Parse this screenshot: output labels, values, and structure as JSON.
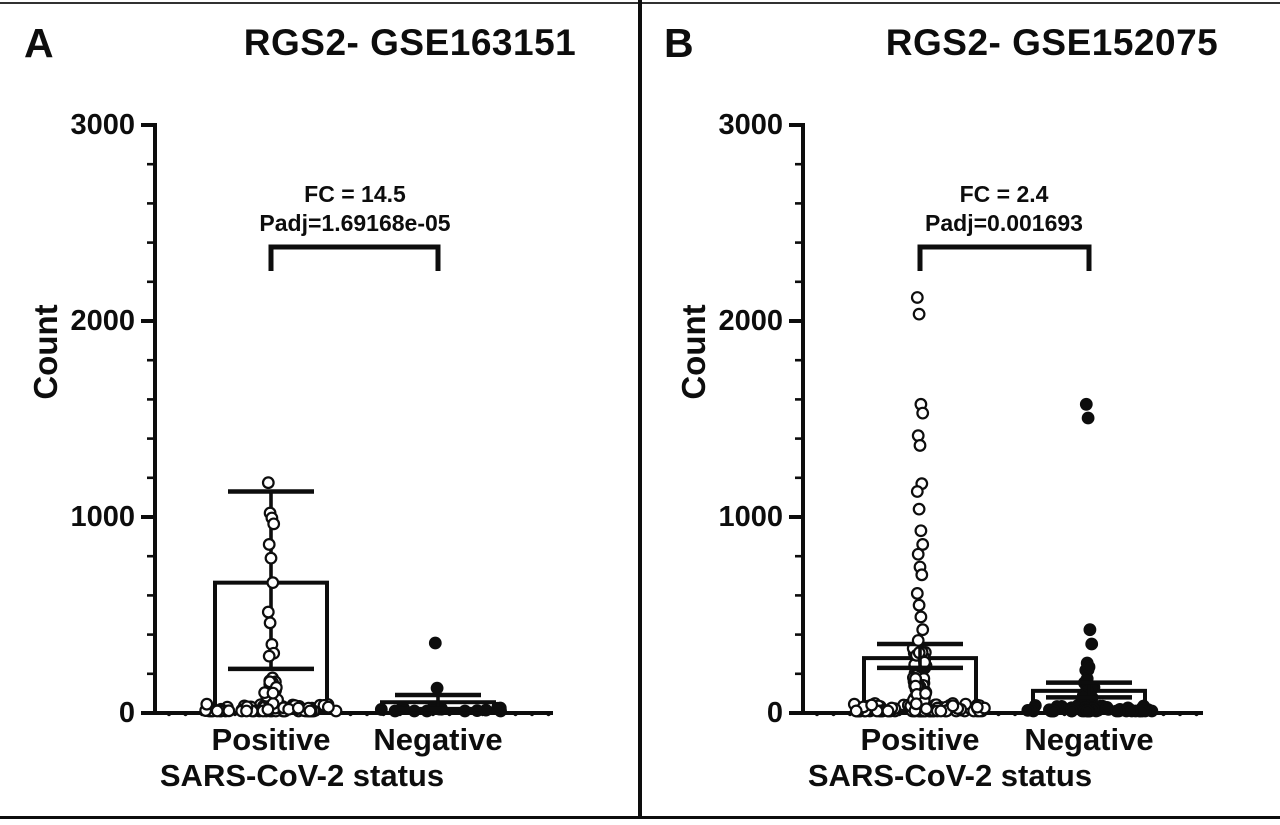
{
  "figure": {
    "kind": "two-panel gene expression bar/scatter figure",
    "ink_color": "#0d0d0d",
    "background": "#ffffff"
  },
  "chart_data": [
    {
      "type": "bar",
      "panel_label": "A",
      "title": "RGS2- GSE163151",
      "ylabel": "Count",
      "xlabel": "SARS-CoV-2 status",
      "ylim": [
        0,
        3000
      ],
      "yticks": [
        0,
        1000,
        2000,
        3000
      ],
      "y_minor_step": 200,
      "categories": [
        "Positive",
        "Negative"
      ],
      "annotation": {
        "fc": "FC = 14.5",
        "padj": "Padj=1.69168e-05"
      },
      "legend": "none",
      "grid": false,
      "groups": [
        {
          "category": "Positive",
          "marker": "open-circle",
          "bar_mean": 665,
          "error_high": 1130,
          "error_low": 225,
          "points_upper": [
            1175,
            1020,
            995,
            965,
            860,
            790,
            665,
            515,
            460,
            350,
            305,
            290
          ],
          "cluster": {
            "n": 85,
            "max_value": 180,
            "baseline_max": 45,
            "column_frac": 0.35
          }
        },
        {
          "category": "Negative",
          "marker": "filled-circle",
          "bar_mean": 55,
          "error_high": 92,
          "error_low": 20,
          "points_upper": [
            357,
            127
          ],
          "cluster": {
            "n": 16,
            "max_value": 40,
            "baseline_max": 32,
            "column_frac": 0.15
          }
        }
      ]
    },
    {
      "type": "bar",
      "panel_label": "B",
      "title": "RGS2- GSE152075",
      "ylabel": "Count",
      "xlabel": "SARS-CoV-2 status",
      "ylim": [
        0,
        3000
      ],
      "yticks": [
        0,
        1000,
        2000,
        3000
      ],
      "y_minor_step": 200,
      "categories": [
        "Positive",
        "Negative"
      ],
      "annotation": {
        "fc": "FC = 2.4",
        "padj": "Padj=0.001693"
      },
      "legend": "none",
      "grid": false,
      "groups": [
        {
          "category": "Positive",
          "marker": "open-circle",
          "bar_mean": 280,
          "error_high": 352,
          "error_low": 230,
          "points_upper": [
            2120,
            2035,
            1575,
            1530,
            1415,
            1365,
            1170,
            1130,
            1040,
            930,
            860,
            810,
            745,
            705,
            610,
            550,
            490,
            425,
            370
          ],
          "cluster": {
            "n": 170,
            "max_value": 330,
            "baseline_max": 50,
            "column_frac": 0.4
          }
        },
        {
          "category": "Negative",
          "marker": "filled-circle",
          "bar_mean": 113,
          "error_high": 155,
          "error_low": 80,
          "points_upper": [
            1575,
            1505,
            425,
            352,
            255,
            235
          ],
          "cluster": {
            "n": 62,
            "max_value": 250,
            "baseline_max": 42,
            "column_frac": 0.3
          }
        }
      ]
    }
  ]
}
